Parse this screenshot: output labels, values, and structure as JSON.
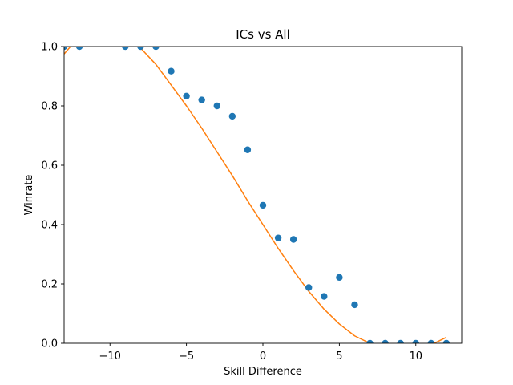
{
  "chart_data": {
    "type": "scatter",
    "title": "ICs vs All",
    "xlabel": "Skill Difference",
    "ylabel": "Winrate",
    "xlim": [
      -13,
      13
    ],
    "ylim": [
      0,
      1
    ],
    "xticks": [
      -10,
      -5,
      0,
      5,
      10
    ],
    "yticks": [
      0.0,
      0.2,
      0.4,
      0.6,
      0.8,
      1.0
    ],
    "xtick_labels": [
      "−10",
      "−5",
      "0",
      "5",
      "10"
    ],
    "ytick_labels": [
      "0.0",
      "0.2",
      "0.4",
      "0.6",
      "0.8",
      "1.0"
    ],
    "grid": false,
    "series": [
      {
        "type": "scatter",
        "color": "#1f77b4",
        "x": [
          -13,
          -12,
          -9,
          -8,
          -7,
          -6,
          -5,
          -4,
          -3,
          -2,
          -1,
          0,
          1,
          2,
          3,
          4,
          5,
          6,
          7,
          8,
          9,
          10,
          11,
          12
        ],
        "y": [
          1.0,
          1.0,
          1.0,
          1.0,
          1.0,
          0.917,
          0.833,
          0.82,
          0.8,
          0.765,
          0.652,
          0.465,
          0.355,
          0.35,
          0.188,
          0.158,
          0.222,
          0.13,
          0.0,
          0.0,
          0.0,
          0.0,
          0.0,
          0.0
        ]
      },
      {
        "type": "line",
        "color": "#ff7f0e",
        "x": [
          -13,
          -12,
          -11,
          -10,
          -9,
          -8,
          -7,
          -6,
          -5,
          -4,
          -3,
          -2,
          -1,
          0,
          1,
          2,
          3,
          4,
          5,
          6,
          7,
          8,
          9,
          10,
          11,
          12
        ],
        "y": [
          0.975,
          1.035,
          1.06,
          1.06,
          1.035,
          0.995,
          0.94,
          0.87,
          0.8,
          0.725,
          0.645,
          0.565,
          0.48,
          0.4,
          0.32,
          0.245,
          0.175,
          0.115,
          0.065,
          0.025,
          0.0,
          -0.015,
          -0.02,
          -0.015,
          -0.005,
          0.02
        ]
      }
    ]
  }
}
